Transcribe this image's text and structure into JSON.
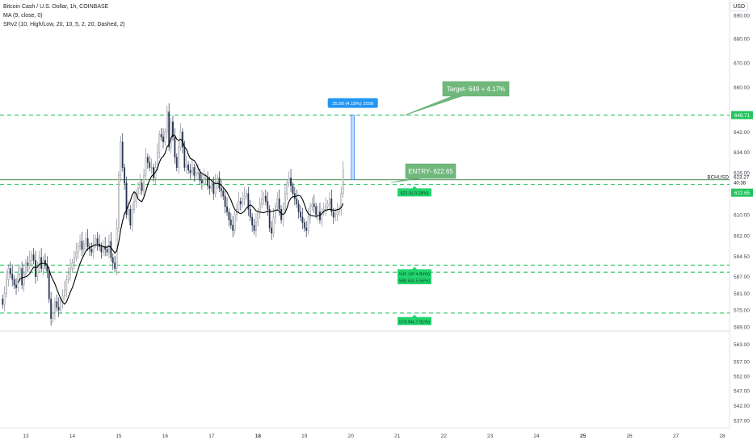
{
  "legend": {
    "symbol_line": "Bitcoin Cash / U.S. Dollar, 1h, COINBASE",
    "ma_line": "MA (9, close, 0)",
    "sr_line": "SRv2 (10, High/Low, 20, 10, 5, 2, 20, Dashed, 2)"
  },
  "currency_label": "USD",
  "chart_data": {
    "type": "candlestick",
    "symbol": "BCHUSD",
    "interval": "1h",
    "y_axis": {
      "ticks": [
        690,
        680,
        670,
        660,
        648.71,
        642,
        634,
        626,
        623.27,
        622.65,
        610,
        602,
        594.5,
        587,
        581,
        575,
        569,
        563,
        557,
        552,
        547,
        542,
        537
      ],
      "tick_labels": [
        "690.00",
        "680.00",
        "670.00",
        "660.00",
        "648.71",
        "642.00",
        "634.00",
        "626.00",
        "623.27",
        "622.65",
        "610.00",
        "602.00",
        "594.50",
        "587.00",
        "581.00",
        "575.00",
        "569.00",
        "563.00",
        "557.00",
        "552.00",
        "547.00",
        "542.00",
        "537.00"
      ],
      "scale": "log",
      "range": [
        533,
        693
      ]
    },
    "x_axis": {
      "labels": [
        "13",
        "14",
        "15",
        "16",
        "17",
        "18",
        "19",
        "20",
        "21",
        "22",
        "23",
        "24",
        "25",
        "26",
        "27",
        "28"
      ],
      "bold_labels": [
        "18",
        "25"
      ]
    },
    "last_price_label": {
      "symbol": "BCHUSD",
      "price": "623.27",
      "countdown": "40:38"
    },
    "current_price_tag": "622.65",
    "target_line_tag": "648.71",
    "colors": {
      "up": "#26a69a",
      "down": "#1e2a4a",
      "candle_up": "#b2b5be",
      "candle_down": "#2a3550",
      "ma": "#000000",
      "sr": "#22c55e",
      "projection": "#2962ff",
      "annotation": "#6bb57a"
    },
    "series_candles": {
      "name": "",
      "start_day": 12.5,
      "step_hours": 1,
      "closes": [
        577,
        581,
        586,
        590,
        588,
        586,
        584,
        583,
        588,
        590,
        584,
        588,
        592,
        591,
        593,
        595,
        593,
        587,
        591,
        594,
        590,
        593,
        591,
        589,
        579,
        572,
        574,
        578,
        576,
        575,
        578,
        580,
        582,
        586,
        588,
        590,
        592,
        594,
        596,
        598,
        600,
        597,
        599,
        601,
        598,
        597,
        596,
        599,
        601,
        599,
        598,
        596,
        598,
        597,
        596,
        600,
        594,
        592,
        590,
        605,
        625,
        638,
        628,
        622,
        610,
        612,
        606,
        612,
        615,
        618,
        620,
        622,
        619,
        625,
        632,
        630,
        628,
        628,
        624,
        628,
        634,
        641,
        640,
        638,
        642,
        650,
        636,
        646,
        640,
        632,
        628,
        636,
        642,
        636,
        628,
        629,
        627,
        626,
        628,
        625,
        626,
        626,
        623,
        622,
        624,
        624,
        621,
        620,
        622,
        618,
        622,
        624,
        620,
        619,
        617,
        613,
        611,
        608,
        606,
        604,
        610,
        612,
        615,
        614,
        616,
        617,
        618,
        612,
        609,
        606,
        604,
        607,
        611,
        614,
        616,
        617,
        615,
        612,
        605,
        603,
        609,
        613,
        616,
        612,
        608,
        612,
        618,
        622,
        624,
        621,
        618,
        616,
        614,
        611,
        609,
        607,
        605,
        604,
        609,
        613,
        614,
        613,
        610,
        611,
        608,
        611,
        612,
        613,
        614,
        616,
        611,
        609,
        610,
        611,
        612,
        618,
        627
      ]
    },
    "series_ma": {
      "name": "MA (9, close, 0)",
      "period": 9
    },
    "sr_levels": [
      {
        "price": 648.71,
        "label": ""
      },
      {
        "price": 621.5,
        "label": "621.5(-0.28%)"
      },
      {
        "price": 591.19,
        "label": "591.19(-4.83%)"
      },
      {
        "price": 588.63,
        "label": "588.63(-5.56%)"
      },
      {
        "price": 573.94,
        "label": "573.94(-7.91%)"
      }
    ],
    "entry_line": 623.27,
    "annotations": [
      {
        "text": "Target- 649 + 4.17%",
        "kind": "callout"
      },
      {
        "text": "ENTRY- 622.65",
        "kind": "callout"
      },
      {
        "text": "25.58 (4.18%) 2558",
        "kind": "measure"
      }
    ]
  }
}
